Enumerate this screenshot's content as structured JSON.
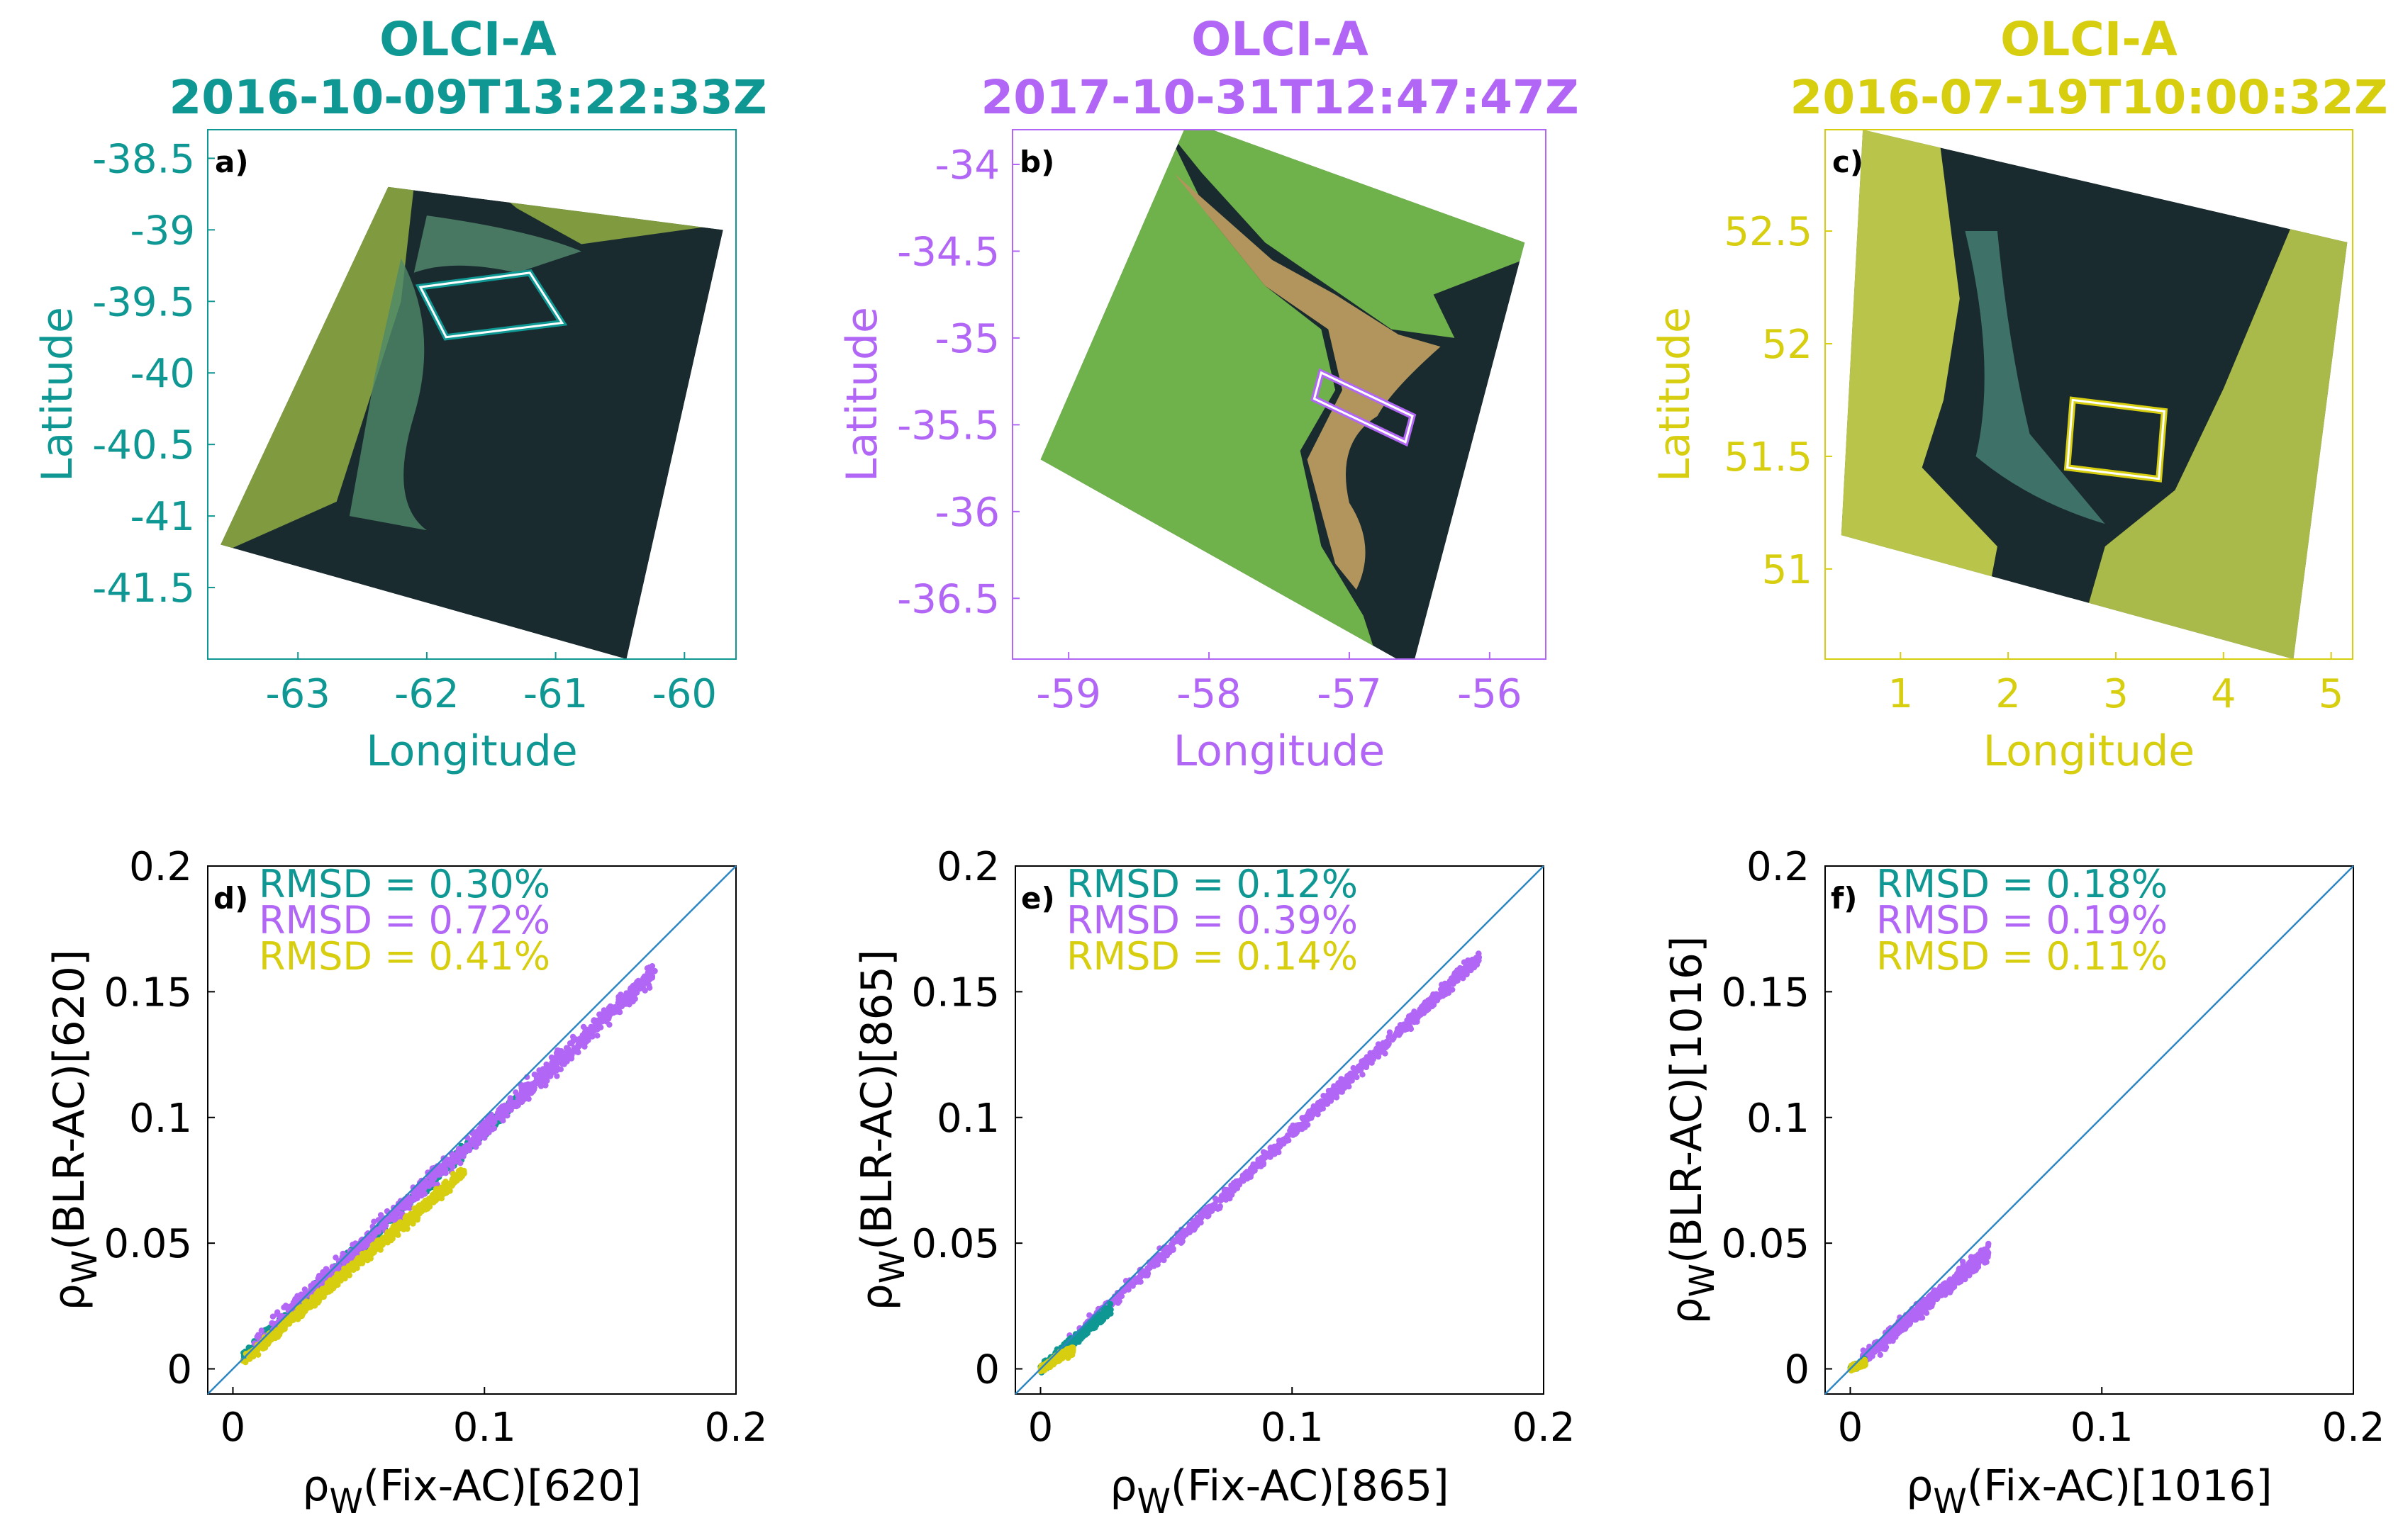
{
  "colors": {
    "a": "#0f9893",
    "b": "#b266f5",
    "c": "#d7ce10",
    "ocean": "#1a2b30",
    "land": "#7f9a3f",
    "sediment": "#b2955c",
    "one_to_one": "#2e86c1"
  },
  "chart_data": [
    {
      "type": "image-map",
      "panel": "a)",
      "color": "#0f9893",
      "title": "OLCI-A",
      "subtitle": "2016-10-09T13:22:33Z",
      "xlabel": "Longitude",
      "ylabel": "Latitude",
      "xlim": [
        -63.7,
        -59.6
      ],
      "ylim": [
        -42.0,
        -38.3
      ],
      "xticks": [
        -63,
        -62,
        -61,
        -60
      ],
      "yticks": [
        -38.5,
        -39,
        -39.5,
        -40,
        -40.5,
        -41,
        -41.5
      ],
      "scene_polygon": [
        [
          -63.6,
          -41.2
        ],
        [
          -62.3,
          -38.7
        ],
        [
          -59.7,
          -39.0
        ],
        [
          -60.45,
          -42.0
        ]
      ],
      "roi_box": [
        [
          -62.05,
          -39.4
        ],
        [
          -61.2,
          -39.3
        ],
        [
          -60.95,
          -39.65
        ],
        [
          -61.85,
          -39.75
        ]
      ]
    },
    {
      "type": "image-map",
      "panel": "b)",
      "color": "#b266f5",
      "title": "OLCI-A",
      "subtitle": "2017-10-31T12:47:47Z",
      "xlabel": "Longitude",
      "ylabel": "Latitude",
      "xlim": [
        -59.4,
        -55.6
      ],
      "ylim": [
        -36.85,
        -33.8
      ],
      "xticks": [
        -59,
        -58,
        -57,
        -56
      ],
      "yticks": [
        -34,
        -34.5,
        -35,
        -35.5,
        -36,
        -36.5
      ],
      "scene_polygon": [
        [
          -59.2,
          -35.7
        ],
        [
          -58.15,
          -33.75
        ],
        [
          -55.75,
          -34.45
        ],
        [
          -56.55,
          -36.9
        ]
      ],
      "roi_box": [
        [
          -57.2,
          -35.2
        ],
        [
          -56.55,
          -35.45
        ],
        [
          -56.6,
          -35.6
        ],
        [
          -57.25,
          -35.35
        ]
      ]
    },
    {
      "type": "image-map",
      "panel": "c)",
      "color": "#d7ce10",
      "title": "OLCI-A",
      "subtitle": "2016-07-19T10:00:32Z",
      "xlabel": "Longitude",
      "ylabel": "Latitude",
      "xlim": [
        0.3,
        5.2
      ],
      "ylim": [
        50.6,
        52.95
      ],
      "xticks": [
        1,
        2,
        3,
        4,
        5
      ],
      "yticks": [
        52.5,
        52,
        51.5,
        51
      ],
      "scene_polygon": [
        [
          0.45,
          51.15
        ],
        [
          0.65,
          52.95
        ],
        [
          5.15,
          52.45
        ],
        [
          4.65,
          50.6
        ]
      ],
      "roi_box": [
        [
          2.6,
          51.75
        ],
        [
          3.45,
          51.7
        ],
        [
          3.4,
          51.4
        ],
        [
          2.55,
          51.45
        ]
      ]
    },
    {
      "type": "scatter",
      "panel": "d)",
      "xlabel_base": "ρ",
      "xlabel_sub": "W",
      "xlabel_rest": "(Fix-AC)[620]",
      "ylabel_base": "ρ",
      "ylabel_sub": "W",
      "ylabel_rest": "(BLR-AC)[620]",
      "xlim": [
        -0.01,
        0.2
      ],
      "ylim": [
        -0.01,
        0.2
      ],
      "xticks": [
        "0",
        "0.1",
        "0.2"
      ],
      "yticks": [
        "0",
        "0.05",
        "0.1",
        "0.15",
        "0.2"
      ],
      "rmsd": [
        "RMSD = 0.30%",
        "RMSD = 0.72%",
        "RMSD = 0.41%"
      ],
      "series": [
        {
          "name": "2016-10-09",
          "color": "#0f9893",
          "x_range": [
            0.003,
            0.118
          ],
          "slope": 0.935,
          "intercept": 0.001,
          "spread": 0.0022,
          "n": 700
        },
        {
          "name": "2017-10-31",
          "color": "#b266f5",
          "x_range": [
            0.008,
            0.168
          ],
          "slope": 0.93,
          "intercept": 0.002,
          "spread": 0.0035,
          "n": 900
        },
        {
          "name": "2016-07-19",
          "color": "#d7ce10",
          "x_range": [
            0.004,
            0.092
          ],
          "slope": 0.85,
          "intercept": 0.0,
          "spread": 0.0022,
          "n": 700
        }
      ]
    },
    {
      "type": "scatter",
      "panel": "e)",
      "xlabel_base": "ρ",
      "xlabel_sub": "W",
      "xlabel_rest": "(Fix-AC)[865]",
      "ylabel_base": "ρ",
      "ylabel_sub": "W",
      "ylabel_rest": "(BLR-AC)[865]",
      "xlim": [
        -0.01,
        0.2
      ],
      "ylim": [
        -0.01,
        0.2
      ],
      "xticks": [
        "0",
        "0.1",
        "0.2"
      ],
      "yticks": [
        "0",
        "0.05",
        "0.1",
        "0.15",
        "0.2"
      ],
      "rmsd": [
        "RMSD = 0.12%",
        "RMSD = 0.39%",
        "RMSD = 0.14%"
      ],
      "series": [
        {
          "name": "2017-10-31",
          "color": "#b266f5",
          "x_range": [
            0.01,
            0.175
          ],
          "slope": 0.94,
          "intercept": 0.0,
          "spread": 0.0025,
          "n": 900
        },
        {
          "name": "2016-10-09",
          "color": "#0f9893",
          "x_range": [
            0.0,
            0.028
          ],
          "slope": 0.85,
          "intercept": 0.0,
          "spread": 0.002,
          "n": 400
        },
        {
          "name": "2016-07-19",
          "color": "#d7ce10",
          "x_range": [
            0.0,
            0.013
          ],
          "slope": 0.6,
          "intercept": 0.0,
          "spread": 0.0015,
          "n": 300
        }
      ]
    },
    {
      "type": "scatter",
      "panel": "f)",
      "xlabel_base": "ρ",
      "xlabel_sub": "W",
      "xlabel_rest": "(Fix-AC)[1016]",
      "ylabel_base": "ρ",
      "ylabel_sub": "W",
      "ylabel_rest": "(BLR-AC)[1016]",
      "xlim": [
        -0.01,
        0.2
      ],
      "ylim": [
        -0.01,
        0.2
      ],
      "xticks": [
        "0",
        "0.1",
        "0.2"
      ],
      "yticks": [
        "0",
        "0.05",
        "0.1",
        "0.15",
        "0.2"
      ],
      "rmsd": [
        "RMSD = 0.18%",
        "RMSD = 0.19%",
        "RMSD = 0.11%"
      ],
      "series": [
        {
          "name": "2017-10-31",
          "color": "#b266f5",
          "x_range": [
            0.003,
            0.055
          ],
          "slope": 0.85,
          "intercept": 0.0,
          "spread": 0.003,
          "n": 500
        },
        {
          "name": "2016-10-09",
          "color": "#0f9893",
          "x_range": [
            0.0,
            0.006
          ],
          "slope": 0.5,
          "intercept": 0.0,
          "spread": 0.001,
          "n": 150
        },
        {
          "name": "2016-07-19",
          "color": "#d7ce10",
          "x_range": [
            0.0,
            0.006
          ],
          "slope": 0.4,
          "intercept": 0.0,
          "spread": 0.001,
          "n": 150
        }
      ]
    }
  ]
}
